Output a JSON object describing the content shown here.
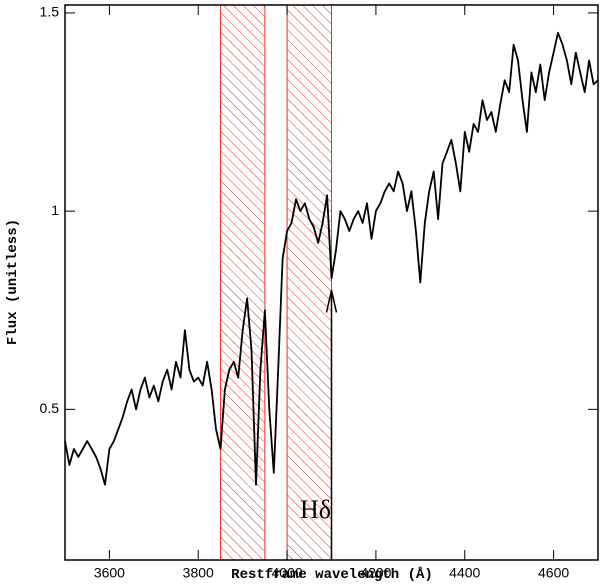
{
  "chart_data": {
    "type": "line",
    "xlabel": "Restframe wavelength (Å)",
    "ylabel": "Flux (unitless)",
    "color": "#000000",
    "x": [
      3500,
      3510,
      3520,
      3530,
      3540,
      3550,
      3560,
      3570,
      3580,
      3590,
      3600,
      3610,
      3620,
      3630,
      3640,
      3650,
      3660,
      3670,
      3680,
      3690,
      3700,
      3710,
      3720,
      3730,
      3740,
      3750,
      3760,
      3770,
      3780,
      3790,
      3800,
      3810,
      3820,
      3830,
      3840,
      3850,
      3860,
      3870,
      3880,
      3890,
      3900,
      3910,
      3920,
      3930,
      3940,
      3950,
      3960,
      3970,
      3980,
      3990,
      4000,
      4010,
      4020,
      4030,
      4040,
      4050,
      4060,
      4070,
      4080,
      4090,
      4100,
      4110,
      4120,
      4130,
      4140,
      4150,
      4160,
      4170,
      4180,
      4190,
      4200,
      4210,
      4220,
      4230,
      4240,
      4250,
      4260,
      4270,
      4280,
      4290,
      4300,
      4310,
      4320,
      4330,
      4340,
      4350,
      4360,
      4370,
      4380,
      4390,
      4400,
      4410,
      4420,
      4430,
      4440,
      4450,
      4460,
      4470,
      4480,
      4490,
      4500,
      4510,
      4520,
      4530,
      4540,
      4550,
      4560,
      4570,
      4580,
      4590,
      4600,
      4610,
      4620,
      4630,
      4640,
      4650,
      4660,
      4670,
      4680,
      4690,
      4700
    ],
    "values": [
      0.42,
      0.36,
      0.4,
      0.38,
      0.4,
      0.42,
      0.4,
      0.38,
      0.35,
      0.31,
      0.4,
      0.42,
      0.45,
      0.48,
      0.52,
      0.55,
      0.5,
      0.55,
      0.58,
      0.53,
      0.56,
      0.52,
      0.57,
      0.6,
      0.55,
      0.62,
      0.58,
      0.7,
      0.6,
      0.57,
      0.58,
      0.56,
      0.62,
      0.55,
      0.45,
      0.4,
      0.55,
      0.6,
      0.62,
      0.58,
      0.7,
      0.78,
      0.65,
      0.31,
      0.6,
      0.75,
      0.5,
      0.34,
      0.6,
      0.88,
      0.95,
      0.97,
      1.03,
      1.0,
      1.02,
      0.98,
      0.96,
      0.92,
      0.97,
      1.04,
      0.83,
      0.9,
      1.0,
      0.98,
      0.95,
      0.98,
      1.0,
      0.97,
      1.02,
      0.93,
      1.0,
      1.02,
      1.05,
      1.07,
      1.05,
      1.1,
      1.07,
      1.0,
      1.05,
      0.95,
      0.82,
      0.97,
      1.05,
      1.1,
      0.98,
      1.12,
      1.15,
      1.18,
      1.12,
      1.05,
      1.2,
      1.15,
      1.22,
      1.2,
      1.28,
      1.23,
      1.25,
      1.2,
      1.27,
      1.33,
      1.3,
      1.42,
      1.38,
      1.28,
      1.2,
      1.35,
      1.3,
      1.37,
      1.28,
      1.35,
      1.4,
      1.45,
      1.42,
      1.38,
      1.32,
      1.4,
      1.35,
      1.3,
      1.38,
      1.32,
      1.33
    ],
    "xlim": [
      3500,
      4700
    ],
    "xticks": [
      3600,
      3800,
      4000,
      4200,
      4400,
      4600
    ],
    "ylim": [
      0.12,
      1.52
    ],
    "yticks": [
      0.5,
      1,
      1.5
    ],
    "shaded_regions": [
      [
        3850,
        3950
      ],
      [
        4000,
        4100
      ]
    ],
    "shade_color": "#e8302f",
    "annotations": [
      {
        "text": "Hδ",
        "x": 4100,
        "y": 0.8
      }
    ]
  }
}
